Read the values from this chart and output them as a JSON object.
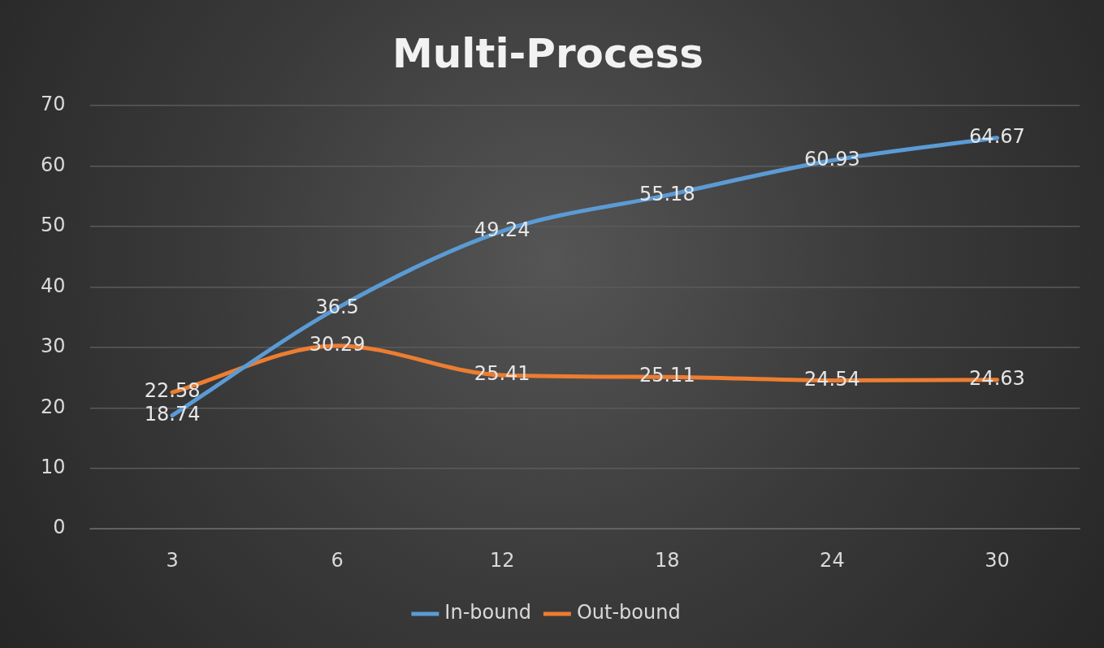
{
  "chart_data": {
    "type": "line",
    "title": "Multi-Process",
    "categories": [
      "3",
      "6",
      "12",
      "18",
      "24",
      "30"
    ],
    "series": [
      {
        "name": "In-bound",
        "color": "#5b9bd5",
        "values": [
          18.74,
          36.5,
          49.24,
          55.18,
          60.93,
          64.67
        ]
      },
      {
        "name": "Out-bound",
        "color": "#ed7d31",
        "values": [
          22.58,
          30.29,
          25.41,
          25.11,
          24.54,
          24.63
        ]
      }
    ],
    "ylim": [
      0,
      70
    ],
    "yticks": [
      0,
      10,
      20,
      30,
      40,
      50,
      60,
      70
    ],
    "grid": "y",
    "legend": "bottom",
    "data_labels": true,
    "marker": "none",
    "line_style": "solid"
  }
}
